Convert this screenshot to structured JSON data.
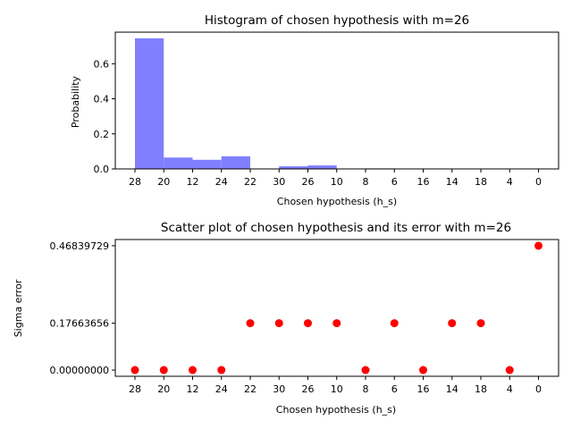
{
  "chart_data": [
    {
      "type": "bar",
      "title": "Histogram of chosen hypothesis with m=26",
      "xlabel": "Chosen hypothesis (h_s)",
      "ylabel": "Probability",
      "categories": [
        "28",
        "20",
        "12",
        "24",
        "22",
        "30",
        "26",
        "10",
        "8",
        "6",
        "16",
        "14",
        "18",
        "4",
        "0"
      ],
      "values": [
        0.745,
        0.065,
        0.052,
        0.072,
        0.0,
        0.015,
        0.02,
        0.0,
        0.003,
        0.0,
        0.002,
        0.002,
        0.002,
        0.0,
        0.0
      ],
      "ylim": [
        0,
        0.78
      ],
      "yticks": [
        0.0,
        0.2,
        0.4,
        0.6
      ],
      "ytick_labels": [
        "0.0",
        "0.2",
        "0.4",
        "0.6"
      ],
      "color": "#8080ff",
      "grid": false
    },
    {
      "type": "scatter",
      "title": "Scatter plot of chosen hypothesis and its error with m=26",
      "xlabel": "Chosen hypothesis (h_s)",
      "ylabel": "Sigma error",
      "categories": [
        "28",
        "20",
        "12",
        "24",
        "22",
        "30",
        "26",
        "10",
        "8",
        "6",
        "16",
        "14",
        "18",
        "4",
        "0"
      ],
      "values": [
        0.0,
        0.0,
        0.0,
        0.0,
        0.17663656,
        0.17663656,
        0.17663656,
        0.17663656,
        0.0,
        0.17663656,
        0.0,
        0.17663656,
        0.17663656,
        0.0,
        0.46839729
      ],
      "ylim": [
        -0.0234,
        0.4918
      ],
      "yticks": [
        0.0,
        0.17663656,
        0.46839729
      ],
      "ytick_labels": [
        "0.00000000",
        "0.17663656",
        "0.46839729"
      ],
      "color": "#ff0000",
      "grid": false
    }
  ]
}
